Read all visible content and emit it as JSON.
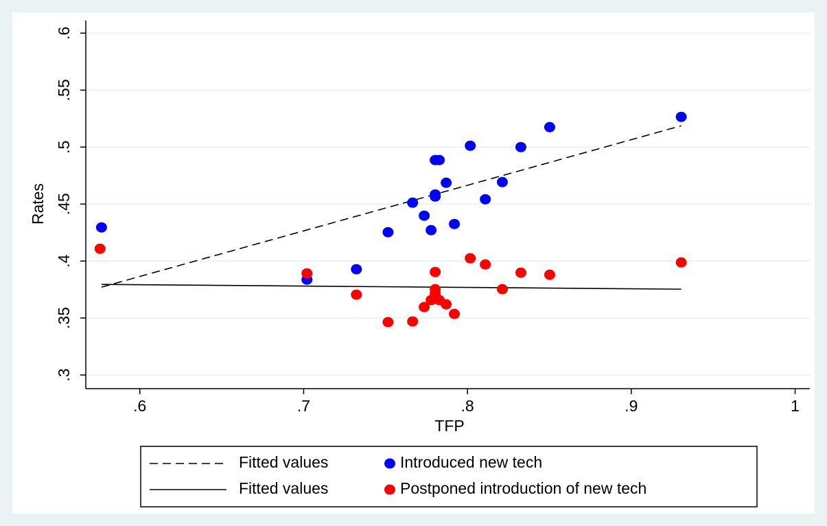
{
  "chart_data": {
    "type": "scatter",
    "x_label": "TFP",
    "y_label": "Rates",
    "xlim": [
      0.567,
      1.009
    ],
    "ylim": [
      0.288,
      0.611
    ],
    "xticks": [
      {
        "value": 0.6,
        "label": ".6"
      },
      {
        "value": 0.7,
        "label": ".7"
      },
      {
        "value": 0.8,
        "label": ".8"
      },
      {
        "value": 0.9,
        "label": ".9"
      },
      1
    ],
    "yticks": [
      {
        "value": 0.3,
        "label": ".3"
      },
      {
        "value": 0.35,
        "label": ".35"
      },
      {
        "value": 0.4,
        "label": ".4"
      },
      {
        "value": 0.45,
        "label": ".45"
      },
      {
        "value": 0.5,
        "label": ".5"
      },
      {
        "value": 0.55,
        "label": ".55"
      },
      {
        "value": 0.6,
        "label": ".6"
      }
    ],
    "grid": true,
    "series": [
      {
        "name": "Fitted values",
        "kind": "line",
        "style": "dashed",
        "color": "#000000",
        "x": [
          0.5766,
          0.9305
        ],
        "values": [
          0.3771,
          0.5187
        ]
      },
      {
        "name": "Introduced new tech",
        "kind": "scatter",
        "color": "#0000ff",
        "x": [
          0.5766,
          0.702,
          0.7322,
          0.7515,
          0.7665,
          0.7736,
          0.7778,
          0.7803,
          0.7803,
          0.7803,
          0.7828,
          0.787,
          0.792,
          0.8017,
          0.8109,
          0.8213,
          0.8326,
          0.8502,
          0.9305
        ],
        "values": [
          0.4295,
          0.3837,
          0.3928,
          0.4253,
          0.4512,
          0.4398,
          0.4271,
          0.4584,
          0.4566,
          0.4886,
          0.4886,
          0.4687,
          0.4325,
          0.5012,
          0.4542,
          0.4693,
          0.5,
          0.5175,
          0.5265
        ]
      },
      {
        "name": "Fitted values",
        "kind": "line",
        "style": "solid",
        "color": "#000000",
        "x": [
          0.5766,
          0.9305
        ],
        "values": [
          0.3795,
          0.3753
        ]
      },
      {
        "name": "Postponed introduction of new tech",
        "kind": "scatter",
        "color": "#ff0000",
        "x": [
          0.5757,
          0.702,
          0.7322,
          0.7515,
          0.7665,
          0.7736,
          0.7778,
          0.7803,
          0.7803,
          0.7803,
          0.7828,
          0.787,
          0.792,
          0.8017,
          0.8109,
          0.8213,
          0.8326,
          0.8502,
          0.9305
        ],
        "values": [
          0.4108,
          0.3892,
          0.3705,
          0.3464,
          0.347,
          0.3596,
          0.3657,
          0.3904,
          0.3753,
          0.3717,
          0.3657,
          0.362,
          0.3536,
          0.4024,
          0.397,
          0.3753,
          0.3898,
          0.388,
          0.3988
        ]
      }
    ]
  }
}
